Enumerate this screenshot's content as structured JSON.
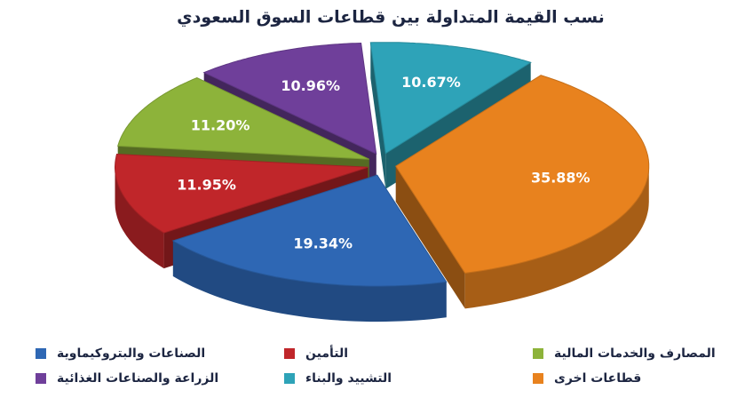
{
  "chart_data": {
    "type": "pie3d",
    "title": "نسب القيمة المتداولة بين قطاعات السوق السعودي",
    "categories": [
      "التشييد والبناء",
      "قطاعات اخرى",
      "الصناعات والبتروكيماوية",
      "التأمين",
      "المصارف والخدمات المالية",
      "الزراعة والصناعات الغذائية"
    ],
    "values": [
      10.67,
      35.88,
      19.34,
      11.95,
      11.2,
      10.96
    ],
    "value_labels": [
      "10.67%",
      "35.88%",
      "19.34%",
      "11.95%",
      "11.20%",
      "10.96%"
    ],
    "colors": [
      "#2ea3b8",
      "#e8821e",
      "#2e67b4",
      "#c0262a",
      "#8db33a",
      "#6f3f9a"
    ],
    "legend": "bottom"
  }
}
